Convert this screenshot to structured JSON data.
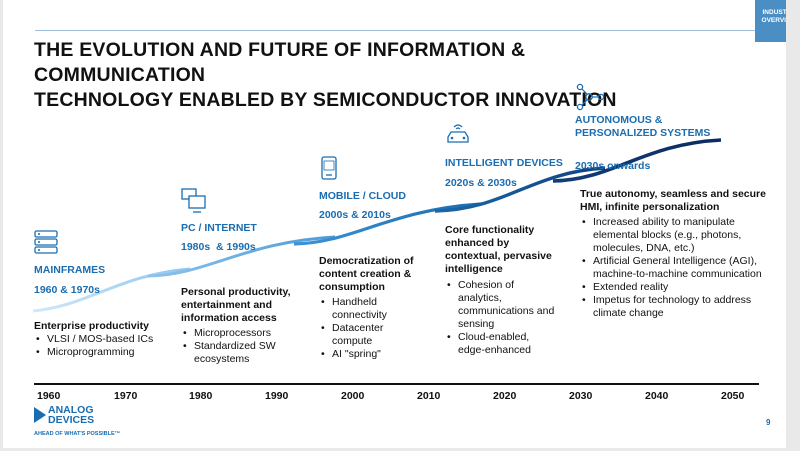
{
  "tag": [
    "INDUSTRY",
    "OVERVIEW"
  ],
  "title": [
    "THE EVOLUTION AND FUTURE OF INFORMATION & COMMUNICATION",
    "TECHNOLOGY ENABLED BY SEMICONDUCTOR INNOVATION"
  ],
  "stages": [
    {
      "name": "MAINFRAMES",
      "era": "1960 & 1970s",
      "icon": "server-icon",
      "heading": "Enterprise productivity",
      "points": [
        "VLSI / MOS-based ICs",
        "Microprogramming"
      ]
    },
    {
      "name": "PC / INTERNET",
      "era": "1980s  & 1990s",
      "icon": "pc-icon",
      "heading": "Personal productivity, entertainment and information access",
      "points": [
        "Microprocessors",
        "Standardized SW ecosystems"
      ]
    },
    {
      "name": "MOBILE / CLOUD",
      "era": "2000s & 2010s",
      "icon": "phone-icon",
      "heading": "Democratization of content creation & consumption",
      "points": [
        "Handheld connectivity",
        "Datacenter compute",
        "AI \"spring\""
      ]
    },
    {
      "name": "INTELLIGENT DEVICES",
      "era": "2020s & 2030s",
      "icon": "car-icon",
      "heading": "Core functionality enhanced by contextual, pervasive intelligence",
      "points": [
        "Cohesion of analytics, communications and sensing",
        "Cloud-enabled, edge-enhanced"
      ]
    },
    {
      "name": "AUTONOMOUS & PERSONALIZED SYSTEMS",
      "era": "2030s onwards",
      "icon": "network-icon",
      "heading": "True autonomy, seamless and secure HMI, infinite personalization",
      "points": [
        "Increased ability to manipulate elemental blocks (e.g., photons, molecules, DNA, etc.)",
        "Artificial General Intelligence (AGI), machine-to-machine communication",
        "Extended reality",
        "Impetus for technology to address climate change"
      ]
    }
  ],
  "years": [
    "1960",
    "1970",
    "1980",
    "1990",
    "2000",
    "2010",
    "2020",
    "2030",
    "2040",
    "2050"
  ],
  "logo": {
    "line1": "ANALOG",
    "line2": "DEVICES",
    "tagline": "AHEAD OF WHAT'S POSSIBLE™"
  },
  "page_number": "9",
  "colors": {
    "accent": "#1a6db0",
    "tag": "#4a8ec3",
    "curve_light": "#a9d4f5",
    "curve_dark": "#0b2c5f"
  }
}
